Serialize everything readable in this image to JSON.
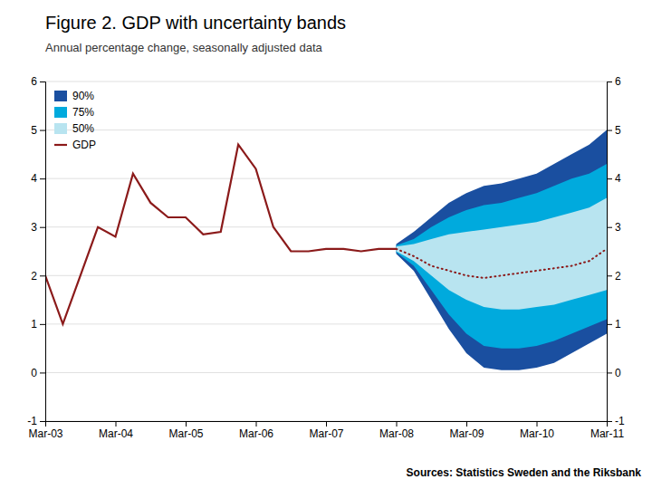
{
  "chart_data": {
    "type": "line",
    "title": "Figure 2. GDP with uncertainty bands",
    "subtitle": "Annual percentage change, seasonally adjusted data",
    "annotations": [
      "Sources: Statistics Sweden and the Riksbank"
    ],
    "categories": [
      "Mar-03",
      null,
      null,
      null,
      "Mar-04",
      null,
      null,
      null,
      "Mar-05",
      null,
      null,
      null,
      "Mar-06",
      null,
      null,
      null,
      "Mar-07",
      null,
      null,
      null,
      "Mar-08",
      null,
      null,
      null,
      "Mar-09",
      null,
      null,
      null,
      "Mar-10",
      null,
      null,
      null,
      "Mar-11"
    ],
    "series": [
      {
        "name": "90%",
        "type": "area",
        "color": "#1a4fa0",
        "values": [
          null,
          null,
          null,
          null,
          null,
          null,
          null,
          null,
          null,
          null,
          null,
          null,
          null,
          null,
          null,
          null,
          null,
          null,
          null,
          null,
          2.65,
          2.9,
          3.2,
          3.5,
          3.7,
          3.85,
          3.9,
          4.0,
          4.1,
          4.3,
          4.5,
          4.7,
          5.0
        ],
        "lower": [
          null,
          null,
          null,
          null,
          null,
          null,
          null,
          null,
          null,
          null,
          null,
          null,
          null,
          null,
          null,
          null,
          null,
          null,
          null,
          null,
          2.45,
          2.1,
          1.5,
          0.9,
          0.4,
          0.1,
          0.05,
          0.05,
          0.1,
          0.2,
          0.4,
          0.6,
          0.8
        ]
      },
      {
        "name": "75%",
        "type": "area",
        "color": "#00aadd",
        "values": [
          null,
          null,
          null,
          null,
          null,
          null,
          null,
          null,
          null,
          null,
          null,
          null,
          null,
          null,
          null,
          null,
          null,
          null,
          null,
          null,
          2.62,
          2.75,
          3.0,
          3.2,
          3.35,
          3.45,
          3.5,
          3.6,
          3.7,
          3.85,
          4.0,
          4.1,
          4.3
        ],
        "lower": [
          null,
          null,
          null,
          null,
          null,
          null,
          null,
          null,
          null,
          null,
          null,
          null,
          null,
          null,
          null,
          null,
          null,
          null,
          null,
          null,
          2.48,
          2.2,
          1.7,
          1.2,
          0.8,
          0.55,
          0.5,
          0.5,
          0.55,
          0.65,
          0.8,
          0.95,
          1.1
        ]
      },
      {
        "name": "50%",
        "type": "area",
        "color": "#b8e4f0",
        "values": [
          null,
          null,
          null,
          null,
          null,
          null,
          null,
          null,
          null,
          null,
          null,
          null,
          null,
          null,
          null,
          null,
          null,
          null,
          null,
          null,
          2.6,
          2.65,
          2.75,
          2.85,
          2.9,
          2.95,
          3.0,
          3.05,
          3.1,
          3.2,
          3.3,
          3.4,
          3.6
        ],
        "lower": [
          null,
          null,
          null,
          null,
          null,
          null,
          null,
          null,
          null,
          null,
          null,
          null,
          null,
          null,
          null,
          null,
          null,
          null,
          null,
          null,
          2.5,
          2.3,
          2.0,
          1.7,
          1.5,
          1.35,
          1.3,
          1.3,
          1.35,
          1.4,
          1.5,
          1.6,
          1.7
        ]
      },
      {
        "name": "GDP",
        "type": "line",
        "color": "#8b1a1a",
        "line_style": "solid",
        "values": [
          2.0,
          1.0,
          2.0,
          3.0,
          2.8,
          4.1,
          3.5,
          3.2,
          3.2,
          2.85,
          2.9,
          4.7,
          4.2,
          3.0,
          2.5,
          2.5,
          2.55,
          2.55,
          2.5,
          2.55,
          2.55,
          null,
          null,
          null,
          null,
          null,
          null,
          null,
          null,
          null,
          null,
          null,
          null
        ]
      },
      {
        "type": "line",
        "color": "#8b1a1a",
        "line_style": "dotted",
        "values": [
          null,
          null,
          null,
          null,
          null,
          null,
          null,
          null,
          null,
          null,
          null,
          null,
          null,
          null,
          null,
          null,
          null,
          null,
          null,
          null,
          2.55,
          2.4,
          2.2,
          2.1,
          2.0,
          1.95,
          2.0,
          2.05,
          2.1,
          2.15,
          2.2,
          2.3,
          2.55
        ]
      }
    ],
    "ylim": [
      -1,
      6
    ],
    "yticks": [
      -1,
      0,
      1,
      2,
      3,
      4,
      5,
      6
    ],
    "y2lim": [
      -1,
      6
    ],
    "y2ticks": [
      -1,
      0,
      1,
      2,
      3,
      4,
      5,
      6
    ],
    "grid": true,
    "legend": "upper left"
  }
}
